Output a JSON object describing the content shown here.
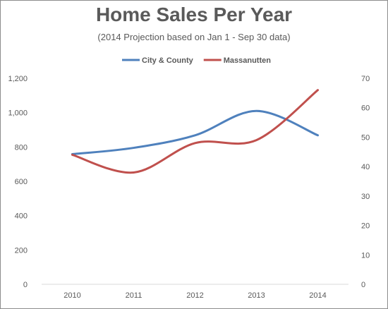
{
  "chart_data": {
    "type": "line",
    "title": "Home Sales Per Year",
    "subtitle": "(2014 Projection based on Jan 1 - Sep 30 data)",
    "x": [
      "2010",
      "2011",
      "2012",
      "2013",
      "2014"
    ],
    "series": [
      {
        "name": "City & County",
        "axis": "left",
        "color": "#4f81bd",
        "values": [
          758,
          795,
          868,
          1010,
          868
        ]
      },
      {
        "name": "Massanutten",
        "axis": "right",
        "color": "#c0504d",
        "values": [
          44,
          38,
          48,
          49,
          66
        ]
      }
    ],
    "y_left": {
      "range": [
        0,
        1200
      ],
      "ticks": [
        "0",
        "200",
        "400",
        "600",
        "800",
        "1,000",
        "1,200"
      ],
      "tick_values": [
        0,
        200,
        400,
        600,
        800,
        1000,
        1200
      ]
    },
    "y_right": {
      "range": [
        0,
        70
      ],
      "ticks": [
        "0",
        "10",
        "20",
        "30",
        "40",
        "50",
        "60",
        "70"
      ],
      "tick_values": [
        0,
        10,
        20,
        30,
        40,
        50,
        60,
        70
      ]
    },
    "smooth": true,
    "grid": false,
    "legend_position": "top"
  }
}
